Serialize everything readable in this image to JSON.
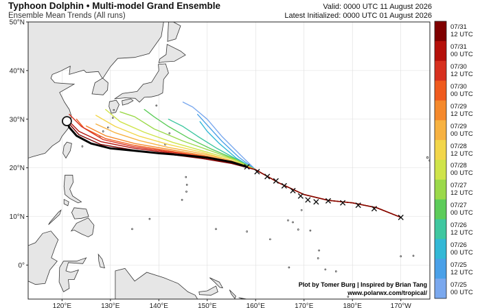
{
  "header": {
    "title": "Typhoon Dolphin • Multi-model Grand Ensemble",
    "subtitle": "Ensemble Mean Trends (All runs)",
    "valid": "Valid: 0000 UTC 11 August 2026",
    "latest": "Latest Initialized: 0000 UTC 01 August 2026"
  },
  "credits": {
    "line1": "Plot by Tomer Burg | Inspired by Brian Tang",
    "line2": "www.polarwx.com/tropical/"
  },
  "map": {
    "lon_range": [
      113,
      196
    ],
    "lat_range": [
      -7,
      50
    ],
    "lat_ticks": [
      {
        "value": 50,
        "label": "50°N"
      },
      {
        "value": 40,
        "label": "40°N"
      },
      {
        "value": 30,
        "label": "30°N"
      },
      {
        "value": 20,
        "label": "20°N"
      },
      {
        "value": 10,
        "label": "10°N"
      },
      {
        "value": 0,
        "label": "0°"
      }
    ],
    "lon_ticks": [
      {
        "value": 120,
        "label": "120°E"
      },
      {
        "value": 130,
        "label": "130°E"
      },
      {
        "value": 140,
        "label": "140°E"
      },
      {
        "value": 150,
        "label": "150°E"
      },
      {
        "value": 160,
        "label": "160°E"
      },
      {
        "value": 170,
        "label": "170°E"
      },
      {
        "value": 180,
        "label": "180°E"
      },
      {
        "value": 190,
        "label": "170°W"
      }
    ],
    "colors": {
      "ocean": "#ffffff",
      "land": "#e6e6e6",
      "coast": "#333333",
      "final_track": "#000000"
    }
  },
  "colorbar": {
    "labels": [
      "07/31\n12 UTC",
      "07/31\n00 UTC",
      "07/30\n12 UTC",
      "07/30\n00 UTC",
      "07/29\n12 UTC",
      "07/29\n00 UTC",
      "07/28\n12 UTC",
      "07/28\n00 UTC",
      "07/27\n12 UTC",
      "07/27\n00 UTC",
      "07/26\n12 UTC",
      "07/26\n00 UTC",
      "07/25\n12 UTC",
      "07/25\n00 UTC"
    ],
    "colors": [
      "#7f0000",
      "#b5100a",
      "#d7301f",
      "#ef5a1e",
      "#f5892c",
      "#f7b241",
      "#f2d64a",
      "#cfe44a",
      "#9bd94a",
      "#5dcc5a",
      "#3fc7a0",
      "#33b8d6",
      "#4aa0e8",
      "#7aa8ee"
    ]
  },
  "chart_data": {
    "type": "map-tracks",
    "observed_positions": [
      [
        190,
        9.8
      ],
      [
        184.5,
        11.6
      ],
      [
        181.2,
        12.3
      ],
      [
        178,
        12.8
      ],
      [
        175,
        13.2
      ],
      [
        172.5,
        13.0
      ],
      [
        170.8,
        13.4
      ],
      [
        169.3,
        14.2
      ],
      [
        167.7,
        15.3
      ],
      [
        165.9,
        16.3
      ],
      [
        164.2,
        17.3
      ],
      [
        162.4,
        18.2
      ],
      [
        160.3,
        19.2
      ],
      [
        158.2,
        20.2
      ]
    ],
    "end_marker": [
      121,
      29.6
    ],
    "tracks": [
      {
        "color": "#7aa8ee",
        "points": [
          [
            190,
            9.8
          ],
          [
            185,
            11.8
          ],
          [
            180,
            12.8
          ],
          [
            175,
            13.3
          ],
          [
            170,
            14.5
          ],
          [
            165,
            16.8
          ],
          [
            160,
            19.6
          ],
          [
            157,
            22.5
          ],
          [
            153,
            26.5
          ],
          [
            150,
            30
          ],
          [
            147,
            32.5
          ],
          [
            145,
            33.5
          ]
        ]
      },
      {
        "color": "#4aa0e8",
        "points": [
          [
            190,
            9.8
          ],
          [
            185,
            11.8
          ],
          [
            180,
            12.8
          ],
          [
            175,
            13.3
          ],
          [
            170,
            14.5
          ],
          [
            165,
            16.8
          ],
          [
            160,
            19.6
          ],
          [
            156.5,
            22.2
          ],
          [
            153,
            25.5
          ],
          [
            150,
            28.8
          ],
          [
            148,
            31
          ]
        ]
      },
      {
        "color": "#33b8d6",
        "points": [
          [
            190,
            9.8
          ],
          [
            185,
            11.8
          ],
          [
            180,
            12.8
          ],
          [
            175,
            13.3
          ],
          [
            170,
            14.5
          ],
          [
            165,
            16.8
          ],
          [
            160,
            19.6
          ],
          [
            156,
            22
          ],
          [
            152.5,
            25
          ],
          [
            150,
            27.5
          ],
          [
            148.5,
            29.5
          ]
        ]
      },
      {
        "color": "#3fc7a0",
        "points": [
          [
            190,
            9.8
          ],
          [
            185,
            11.8
          ],
          [
            180,
            12.8
          ],
          [
            175,
            13.3
          ],
          [
            170,
            14.5
          ],
          [
            165,
            16.8
          ],
          [
            160,
            19.6
          ],
          [
            156,
            21.8
          ],
          [
            152,
            24
          ],
          [
            148,
            26.5
          ],
          [
            145,
            28.5
          ],
          [
            142,
            30
          ]
        ]
      },
      {
        "color": "#5dcc5a",
        "points": [
          [
            190,
            9.8
          ],
          [
            185,
            11.8
          ],
          [
            180,
            12.8
          ],
          [
            175,
            13.3
          ],
          [
            170,
            14.5
          ],
          [
            165,
            16.8
          ],
          [
            160,
            19.6
          ],
          [
            156,
            21.7
          ],
          [
            151,
            23.8
          ],
          [
            146,
            26.2
          ],
          [
            142,
            28.5
          ],
          [
            139,
            30.5
          ],
          [
            137,
            32
          ]
        ]
      },
      {
        "color": "#9bd94a",
        "points": [
          [
            190,
            9.8
          ],
          [
            185,
            11.8
          ],
          [
            180,
            12.8
          ],
          [
            175,
            13.3
          ],
          [
            170,
            14.5
          ],
          [
            165,
            16.8
          ],
          [
            160,
            19.6
          ],
          [
            156,
            21.6
          ],
          [
            151,
            23.4
          ],
          [
            145,
            25.5
          ],
          [
            139,
            28
          ],
          [
            135,
            30.5
          ],
          [
            132,
            31.5
          ]
        ]
      },
      {
        "color": "#cfe44a",
        "points": [
          [
            190,
            9.8
          ],
          [
            185,
            11.8
          ],
          [
            180,
            12.8
          ],
          [
            175,
            13.3
          ],
          [
            170,
            14.5
          ],
          [
            165,
            16.8
          ],
          [
            160,
            19.6
          ],
          [
            155,
            21.8
          ],
          [
            149,
            23.5
          ],
          [
            143,
            25.2
          ],
          [
            137,
            27.3
          ],
          [
            132,
            29.5
          ],
          [
            129,
            32
          ]
        ]
      },
      {
        "color": "#f2d64a",
        "points": [
          [
            190,
            9.8
          ],
          [
            185,
            11.8
          ],
          [
            180,
            12.8
          ],
          [
            175,
            13.3
          ],
          [
            170,
            14.5
          ],
          [
            165,
            16.8
          ],
          [
            160,
            19.6
          ],
          [
            155,
            21.5
          ],
          [
            149,
            23.2
          ],
          [
            142,
            24.8
          ],
          [
            136,
            26.5
          ],
          [
            131,
            28.5
          ],
          [
            127,
            30.8
          ]
        ]
      },
      {
        "color": "#f7b241",
        "points": [
          [
            190,
            9.8
          ],
          [
            185,
            11.8
          ],
          [
            180,
            12.8
          ],
          [
            175,
            13.3
          ],
          [
            170,
            14.5
          ],
          [
            165,
            16.8
          ],
          [
            160,
            19.6
          ],
          [
            155,
            21.5
          ],
          [
            149,
            22.9
          ],
          [
            142,
            24.2
          ],
          [
            136,
            25.6
          ],
          [
            131,
            27.2
          ],
          [
            127,
            29
          ]
        ]
      },
      {
        "color": "#f5892c",
        "points": [
          [
            190,
            9.8
          ],
          [
            185,
            11.8
          ],
          [
            180,
            12.8
          ],
          [
            175,
            13.3
          ],
          [
            170,
            14.5
          ],
          [
            165,
            16.8
          ],
          [
            160,
            19.6
          ],
          [
            155,
            21.3
          ],
          [
            149,
            22.6
          ],
          [
            142,
            23.8
          ],
          [
            135,
            25
          ],
          [
            129,
            26.6
          ],
          [
            125,
            28.6
          ]
        ]
      },
      {
        "color": "#ef5a1e",
        "points": [
          [
            190,
            9.8
          ],
          [
            185,
            11.8
          ],
          [
            180,
            12.8
          ],
          [
            175,
            13.3
          ],
          [
            170,
            14.5
          ],
          [
            165,
            16.8
          ],
          [
            160,
            19.6
          ],
          [
            155,
            21.2
          ],
          [
            149,
            22.4
          ],
          [
            142,
            23.5
          ],
          [
            135,
            24.6
          ],
          [
            129,
            26
          ],
          [
            124.5,
            28.2
          ],
          [
            123,
            30
          ]
        ]
      },
      {
        "color": "#d7301f",
        "points": [
          [
            190,
            9.8
          ],
          [
            185,
            11.8
          ],
          [
            180,
            12.8
          ],
          [
            175,
            13.3
          ],
          [
            170,
            14.5
          ],
          [
            165,
            16.8
          ],
          [
            160,
            19.6
          ],
          [
            155,
            21.1
          ],
          [
            149,
            22.3
          ],
          [
            142,
            23.3
          ],
          [
            135,
            24.3
          ],
          [
            128.5,
            25.8
          ],
          [
            124,
            28.5
          ],
          [
            121.5,
            31
          ]
        ]
      },
      {
        "color": "#b5100a",
        "points": [
          [
            190,
            9.8
          ],
          [
            185,
            11.8
          ],
          [
            180,
            12.8
          ],
          [
            175,
            13.3
          ],
          [
            170,
            14.5
          ],
          [
            165,
            16.8
          ],
          [
            160,
            19.6
          ],
          [
            155,
            21
          ],
          [
            149,
            22.1
          ],
          [
            142,
            23.1
          ],
          [
            135,
            24
          ],
          [
            128,
            25.4
          ],
          [
            123.5,
            27.5
          ],
          [
            121,
            30
          ]
        ]
      },
      {
        "color": "#7f0000",
        "points": [
          [
            190,
            9.8
          ],
          [
            185,
            11.8
          ],
          [
            180,
            12.8
          ],
          [
            175,
            13.3
          ],
          [
            170,
            14.5
          ],
          [
            165,
            16.8
          ],
          [
            160,
            19.6
          ],
          [
            155,
            20.9
          ],
          [
            149,
            21.9
          ],
          [
            142,
            22.8
          ],
          [
            135,
            23.6
          ],
          [
            128,
            24.8
          ],
          [
            123.5,
            26.8
          ],
          [
            121,
            29.6
          ]
        ]
      }
    ],
    "final_track": [
      [
        158.2,
        20.2
      ],
      [
        155,
        21.2
      ],
      [
        150,
        22.1
      ],
      [
        145,
        22.6
      ],
      [
        140,
        23
      ],
      [
        135,
        23.5
      ],
      [
        130,
        24
      ],
      [
        126,
        25
      ],
      [
        123,
        26.6
      ],
      [
        121.5,
        28.3
      ],
      [
        121,
        29.6
      ]
    ]
  }
}
